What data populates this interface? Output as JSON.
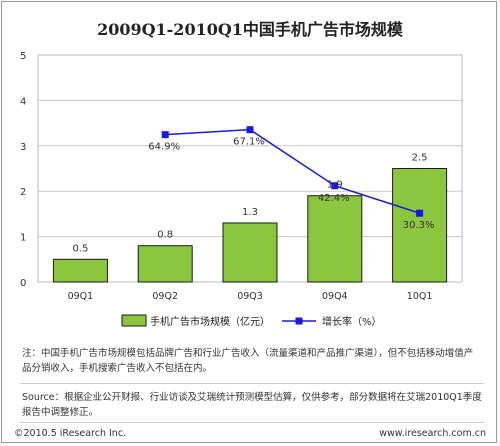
{
  "title": "2009Q1-2010Q1中国手机广告市场规模",
  "chart_data": {
    "type": "bar",
    "categories": [
      "09Q1",
      "09Q2",
      "09Q3",
      "09Q4",
      "10Q1"
    ],
    "series": [
      {
        "name": "手机广告市场规模（亿元）",
        "type": "bar",
        "values": [
          0.5,
          0.8,
          1.3,
          1.9,
          2.5
        ],
        "labels": [
          "0.5",
          "0.8",
          "1.3",
          "1.9",
          "2.5"
        ],
        "color": "#8cc63f"
      },
      {
        "name": "增长率（%）",
        "type": "line",
        "values": [
          null,
          64.9,
          67.1,
          42.4,
          30.3
        ],
        "labels": [
          "",
          "64.9%",
          "67.1%",
          "42.4%",
          "30.3%"
        ],
        "color": "#1a1adb"
      }
    ],
    "ylim": [
      0,
      5
    ],
    "yticks": [
      "0",
      "1",
      "2",
      "3",
      "4",
      "5"
    ],
    "line_ylim": [
      0,
      100
    ],
    "grid": true,
    "legend": "bottom"
  },
  "notes": {
    "note1": "注：中国手机广告市场规模包括品牌广告和行业广告收入（流量渠道和产品推广渠道），但不包括移动增值产品分销收入，手机搜索广告收入不包括在内。",
    "note2": "Source：根据企业公开财报、行业访谈及艾瑞统计预测模型估算，仅供参考，部分数据将在艾瑞2010Q1季度报告中调整修正。"
  },
  "footer": {
    "copyright": "©2010.5 iResearch Inc.",
    "url": "www.iresearch.com.cn"
  }
}
